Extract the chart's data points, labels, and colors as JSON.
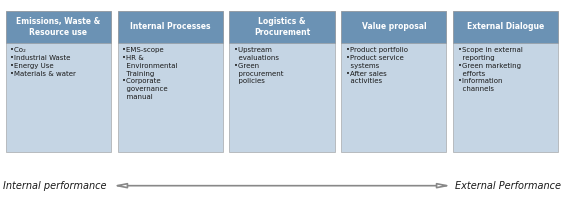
{
  "background_color": "#ffffff",
  "box_color": "#c5d5e4",
  "header_color": "#6b92b4",
  "text_color": "#1a1a1a",
  "header_text_color": "#ffffff",
  "arrow_color": "#888888",
  "columns": [
    {
      "header": "Emissions, Waste &\nResource use",
      "items": "•Co₂\n•Industrial Waste\n•Energy Use\n•Materials & water"
    },
    {
      "header": "Internal Processes",
      "items": "•EMS-scope\n•HR &\n  Environmental\n  Training\n•Corporate\n  governance\n  manual"
    },
    {
      "header": "Logistics &\nProcurement",
      "items": "•Upstream\n  evaluations\n•Green\n  procurement\n  policies"
    },
    {
      "header": "Value proposal",
      "items": "•Product portfolio\n•Product service\n  systems\n•After sales\n  activities"
    },
    {
      "header": "External Dialogue",
      "items": "•Scope in external\n  reporting\n•Green marketing\n  efforts\n•Information\n  channels"
    }
  ],
  "left_label": "Internal performance",
  "right_label": "External Performance",
  "fig_width": 5.64,
  "fig_height": 2.11,
  "dpi": 100
}
